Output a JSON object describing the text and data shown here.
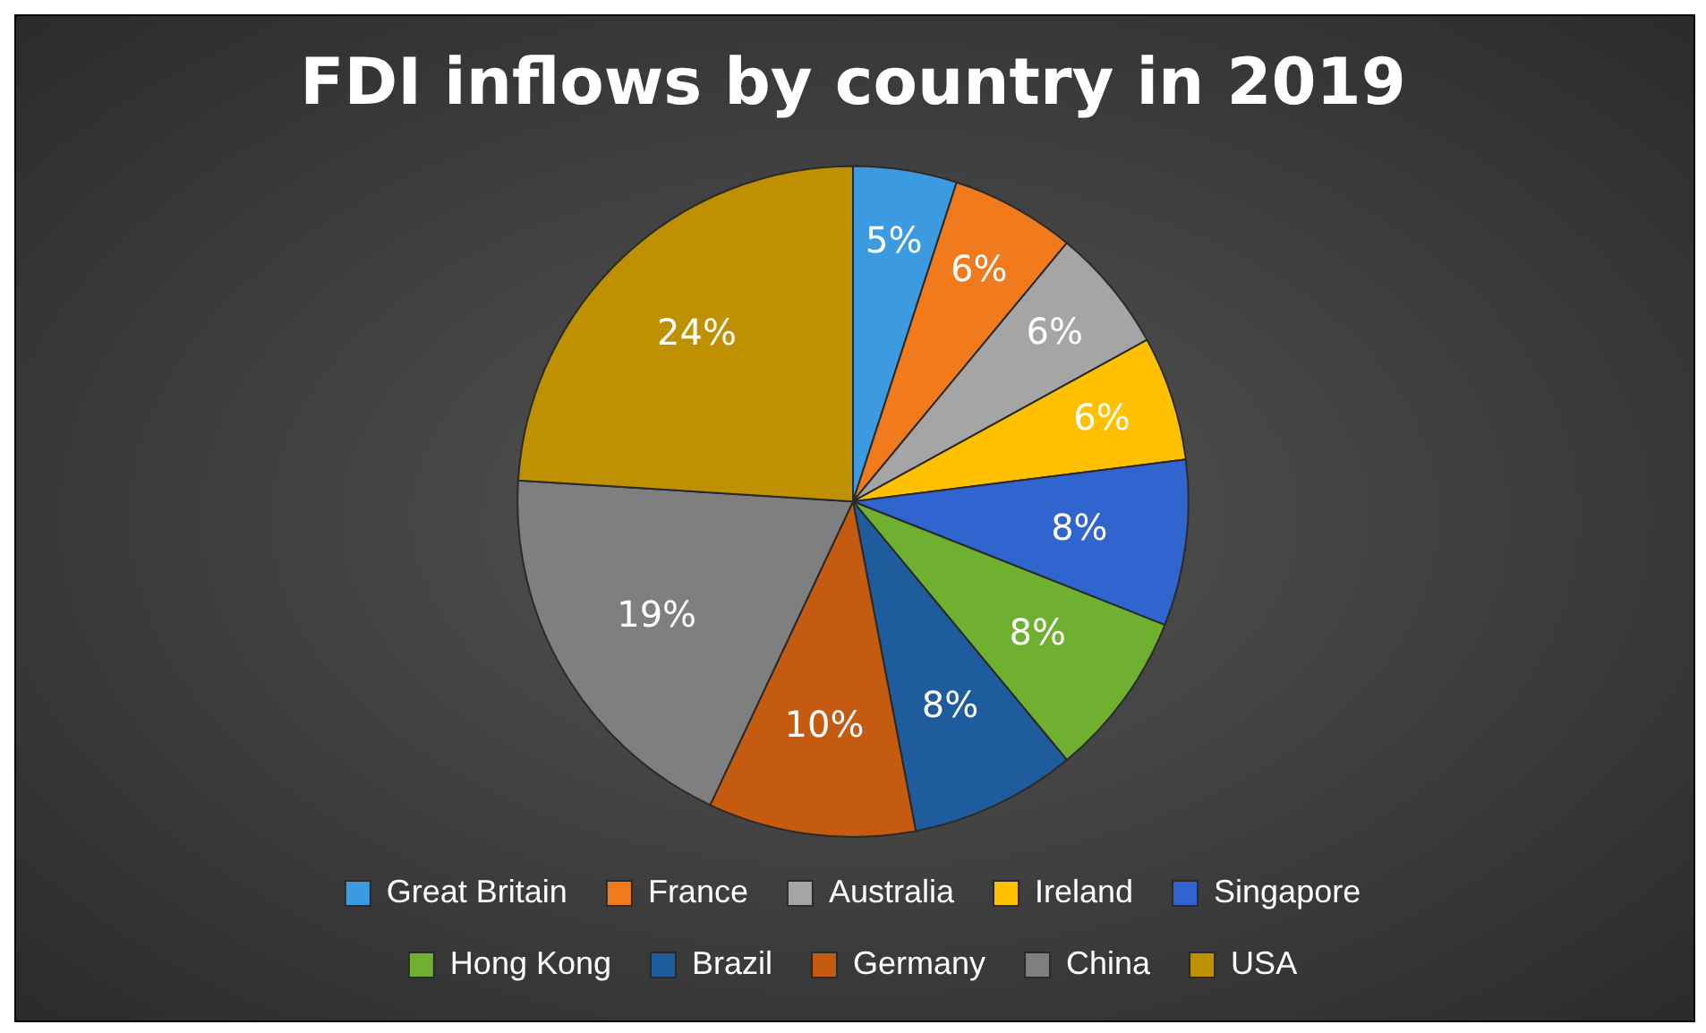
{
  "chart_data": {
    "type": "pie",
    "title": "FDI inflows by country in 2019",
    "categories": [
      "Great Britain",
      "France",
      "Australia",
      "Ireland",
      "Singapore",
      "Hong Kong",
      "Brazil",
      "Germany",
      "China",
      "USA"
    ],
    "values": [
      5,
      6,
      6,
      6,
      8,
      8,
      8,
      10,
      19,
      24
    ],
    "value_labels": [
      "5%",
      "6%",
      "6%",
      "6%",
      "8%",
      "8%",
      "8%",
      "10%",
      "19%",
      "24%"
    ],
    "colors": [
      "#3c9be0",
      "#f07a1c",
      "#a5a5a5",
      "#ffc000",
      "#3065d0",
      "#6fb030",
      "#1f5c9e",
      "#c55a11",
      "#7f7f7f",
      "#bf9000"
    ],
    "legend": "bottom"
  }
}
